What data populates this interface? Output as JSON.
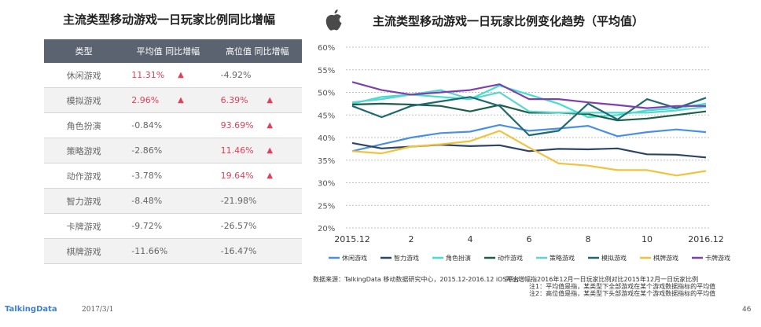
{
  "left_panel": {
    "title": "主流类型移动游戏一日玩家比例同比增幅",
    "headers": [
      "类型",
      "平均值 同比增幅",
      "高位值 同比增幅"
    ],
    "rows": [
      {
        "category": "休闲游戏",
        "avg": "11.31%",
        "avg_up": true,
        "high": "-4.92%",
        "high_up": false
      },
      {
        "category": "模拟游戏",
        "avg": "2.96%",
        "avg_up": true,
        "high": "6.39%",
        "high_up": true
      },
      {
        "category": "角色扮演",
        "avg": "-0.84%",
        "avg_up": false,
        "high": "93.69%",
        "high_up": true
      },
      {
        "category": "策略游戏",
        "avg": "-2.86%",
        "avg_up": false,
        "high": "11.46%",
        "high_up": true
      },
      {
        "category": "动作游戏",
        "avg": "-3.78%",
        "avg_up": false,
        "high": "19.64%",
        "high_up": true
      },
      {
        "category": "智力游戏",
        "avg": "-8.48%",
        "avg_up": false,
        "high": "-21.98%",
        "high_up": false
      },
      {
        "category": "卡牌游戏",
        "avg": "-9.72%",
        "avg_up": false,
        "high": "-26.57%",
        "high_up": false
      },
      {
        "category": "棋牌游戏",
        "avg": "-11.66%",
        "avg_up": false,
        "high": "-16.47%",
        "high_up": false
      }
    ],
    "up_arrow": "▲",
    "red_color": "#e0405a"
  },
  "chart_data": {
    "type": "line",
    "title": "主流类型移动游戏一日玩家比例变化趋势（平均值）",
    "x_ticks": [
      "2015.12",
      "2",
      "4",
      "6",
      "8",
      "10",
      "2016.12"
    ],
    "y_ticks": [
      "20%",
      "25%",
      "30%",
      "35%",
      "40%",
      "45%",
      "50%",
      "55%",
      "60%"
    ],
    "ylim": [
      20,
      60
    ],
    "x_count": 13,
    "series": [
      {
        "name": "休闲游戏",
        "color": "#4a90e2",
        "values": [
          37.0,
          38.5,
          40.0,
          41.0,
          41.3,
          42.8,
          41.5,
          42.0,
          42.6,
          40.3,
          41.2,
          41.8,
          41.2
        ]
      },
      {
        "name": "智力游戏",
        "color": "#2d4466",
        "values": [
          38.8,
          37.6,
          38.0,
          38.4,
          38.1,
          38.3,
          37.0,
          37.5,
          37.4,
          37.6,
          36.3,
          36.2,
          35.6
        ]
      },
      {
        "name": "角色扮演",
        "color": "#40e0d0",
        "values": [
          47.5,
          49.0,
          49.5,
          49.0,
          48.5,
          51.5,
          49.5,
          47.5,
          44.5,
          45.0,
          46.0,
          46.5,
          47.5
        ]
      },
      {
        "name": "动作游戏",
        "color": "#1b5e4a",
        "values": [
          47.3,
          47.5,
          47.3,
          47.0,
          45.8,
          47.2,
          45.5,
          45.5,
          45.2,
          43.8,
          44.2,
          45.0,
          45.8
        ]
      },
      {
        "name": "策略游戏",
        "color": "#5dd5cf",
        "values": [
          47.8,
          48.5,
          49.5,
          50.5,
          48.5,
          50.0,
          45.8,
          45.5,
          45.5,
          45.5,
          45.5,
          46.0,
          46.8
        ]
      },
      {
        "name": "模拟游戏",
        "color": "#1f6a72",
        "values": [
          47.0,
          44.5,
          47.0,
          48.0,
          49.0,
          47.0,
          40.5,
          41.5,
          47.5,
          44.0,
          48.5,
          46.5,
          48.8
        ]
      },
      {
        "name": "棋牌游戏",
        "color": "#f2c23a",
        "values": [
          37.0,
          36.5,
          38.0,
          38.5,
          39.2,
          41.5,
          37.8,
          34.3,
          33.8,
          32.8,
          32.8,
          31.6,
          32.6
        ]
      },
      {
        "name": "卡牌游戏",
        "color": "#7e3fb0",
        "values": [
          52.3,
          50.5,
          49.5,
          50.0,
          50.5,
          51.8,
          48.5,
          48.5,
          47.8,
          47.2,
          46.5,
          47.0,
          47.0
        ]
      }
    ]
  },
  "notes": {
    "source": "数据来源：TalkingData 移动数据研究中心，2015.12-2016.12 iOS平台",
    "note0": "同比增幅指2016年12月一日玩家比例对比2015年12月一日玩家比例",
    "note1": "注1：平均值是指，某类型下全部游戏在某个游戏数据指标的平均值",
    "note2": "注2：高位值是指，某类型下头部游戏在某个游戏数据指标的平均值"
  },
  "footer": {
    "brand": "TalkingData",
    "date": "2017/3/1",
    "page": "46"
  }
}
